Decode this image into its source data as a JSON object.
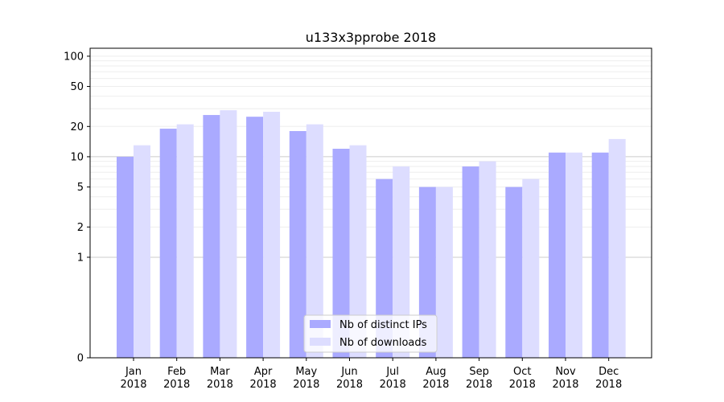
{
  "chart_data": {
    "type": "bar",
    "title": "u133x3pprobe 2018",
    "xlabel": "",
    "ylabel": "",
    "yscale": "symlog",
    "ylim": [
      0,
      120
    ],
    "y_ticks": [
      "0",
      "1",
      "2",
      "5",
      "10",
      "20",
      "50",
      "100"
    ],
    "categories": [
      {
        "month": "Jan",
        "year": "2018"
      },
      {
        "month": "Feb",
        "year": "2018"
      },
      {
        "month": "Mar",
        "year": "2018"
      },
      {
        "month": "Apr",
        "year": "2018"
      },
      {
        "month": "May",
        "year": "2018"
      },
      {
        "month": "Jun",
        "year": "2018"
      },
      {
        "month": "Jul",
        "year": "2018"
      },
      {
        "month": "Aug",
        "year": "2018"
      },
      {
        "month": "Sep",
        "year": "2018"
      },
      {
        "month": "Oct",
        "year": "2018"
      },
      {
        "month": "Nov",
        "year": "2018"
      },
      {
        "month": "Dec",
        "year": "2018"
      }
    ],
    "series": [
      {
        "name": "Nb of distinct IPs",
        "color": "#aaaaff",
        "values": [
          10,
          19,
          26,
          25,
          18,
          12,
          6,
          5,
          8,
          5,
          11,
          11
        ]
      },
      {
        "name": "Nb of downloads",
        "color": "#ddddff",
        "values": [
          13,
          21,
          29,
          28,
          21,
          13,
          8,
          5,
          9,
          6,
          11,
          15
        ]
      }
    ],
    "grid": true,
    "legend_position": "bottom-center"
  }
}
